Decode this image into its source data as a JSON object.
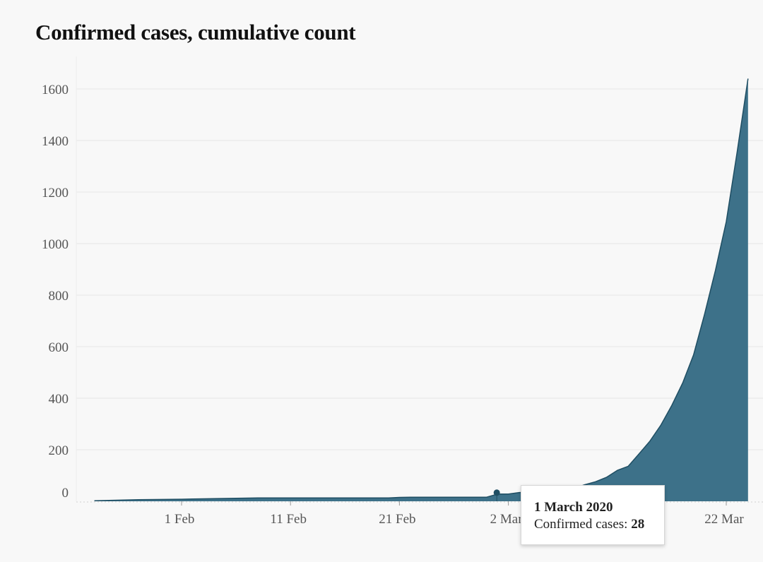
{
  "title": "Confirmed cases, cumulative count",
  "colors": {
    "area_fill": "#3d7189",
    "area_stroke": "#1f4e63",
    "marker": "#1f4e63",
    "gridline": "#e6e6e6",
    "background": "#f8f8f8"
  },
  "tooltip": {
    "date": "1 March 2020",
    "label": "Confirmed cases: ",
    "value": "28"
  },
  "chart_data": {
    "type": "area",
    "title": "Confirmed cases, cumulative count",
    "xlabel": "",
    "ylabel": "",
    "xlim": [
      "2020-01-22",
      "2020-03-25"
    ],
    "ylim": [
      0,
      1600
    ],
    "grid": true,
    "y_ticks": [
      0,
      200,
      400,
      600,
      800,
      1000,
      1200,
      1400,
      1600
    ],
    "x_ticks": [
      {
        "date": "2020-02-01",
        "label": "1 Feb"
      },
      {
        "date": "2020-02-11",
        "label": "11 Feb"
      },
      {
        "date": "2020-02-21",
        "label": "21 Feb"
      },
      {
        "date": "2020-03-02",
        "label": "2 Mar"
      },
      {
        "date": "2020-03-22",
        "label": "22 Mar"
      }
    ],
    "highlighted_point": {
      "date": "2020-03-01",
      "value": 28
    },
    "series": [
      {
        "points": [
          [
            "2020-01-24",
            2
          ],
          [
            "2020-01-28",
            6
          ],
          [
            "2020-02-01",
            8
          ],
          [
            "2020-02-02",
            9
          ],
          [
            "2020-02-05",
            11
          ],
          [
            "2020-02-08",
            13
          ],
          [
            "2020-02-12",
            13
          ],
          [
            "2020-02-15",
            13
          ],
          [
            "2020-02-19",
            13
          ],
          [
            "2020-02-20",
            13
          ],
          [
            "2020-02-21",
            15
          ],
          [
            "2020-02-22",
            16
          ],
          [
            "2020-02-25",
            16
          ],
          [
            "2020-02-29",
            16
          ],
          [
            "2020-03-01",
            28
          ],
          [
            "2020-03-02",
            28
          ],
          [
            "2020-03-03",
            34
          ],
          [
            "2020-03-04",
            36
          ],
          [
            "2020-03-05",
            36
          ],
          [
            "2020-03-06",
            38
          ],
          [
            "2020-03-07",
            42
          ],
          [
            "2020-03-08",
            49
          ],
          [
            "2020-03-09",
            64
          ],
          [
            "2020-03-10",
            76
          ],
          [
            "2020-03-11",
            93
          ],
          [
            "2020-03-12",
            120
          ],
          [
            "2020-03-13",
            136
          ],
          [
            "2020-03-14",
            184
          ],
          [
            "2020-03-15",
            234
          ],
          [
            "2020-03-16",
            296
          ],
          [
            "2020-03-17",
            372
          ],
          [
            "2020-03-18",
            459
          ],
          [
            "2020-03-19",
            568
          ],
          [
            "2020-03-20",
            725
          ],
          [
            "2020-03-21",
            895
          ],
          [
            "2020-03-22",
            1085
          ],
          [
            "2020-03-23",
            1355
          ],
          [
            "2020-03-24",
            1640
          ]
        ]
      }
    ]
  }
}
